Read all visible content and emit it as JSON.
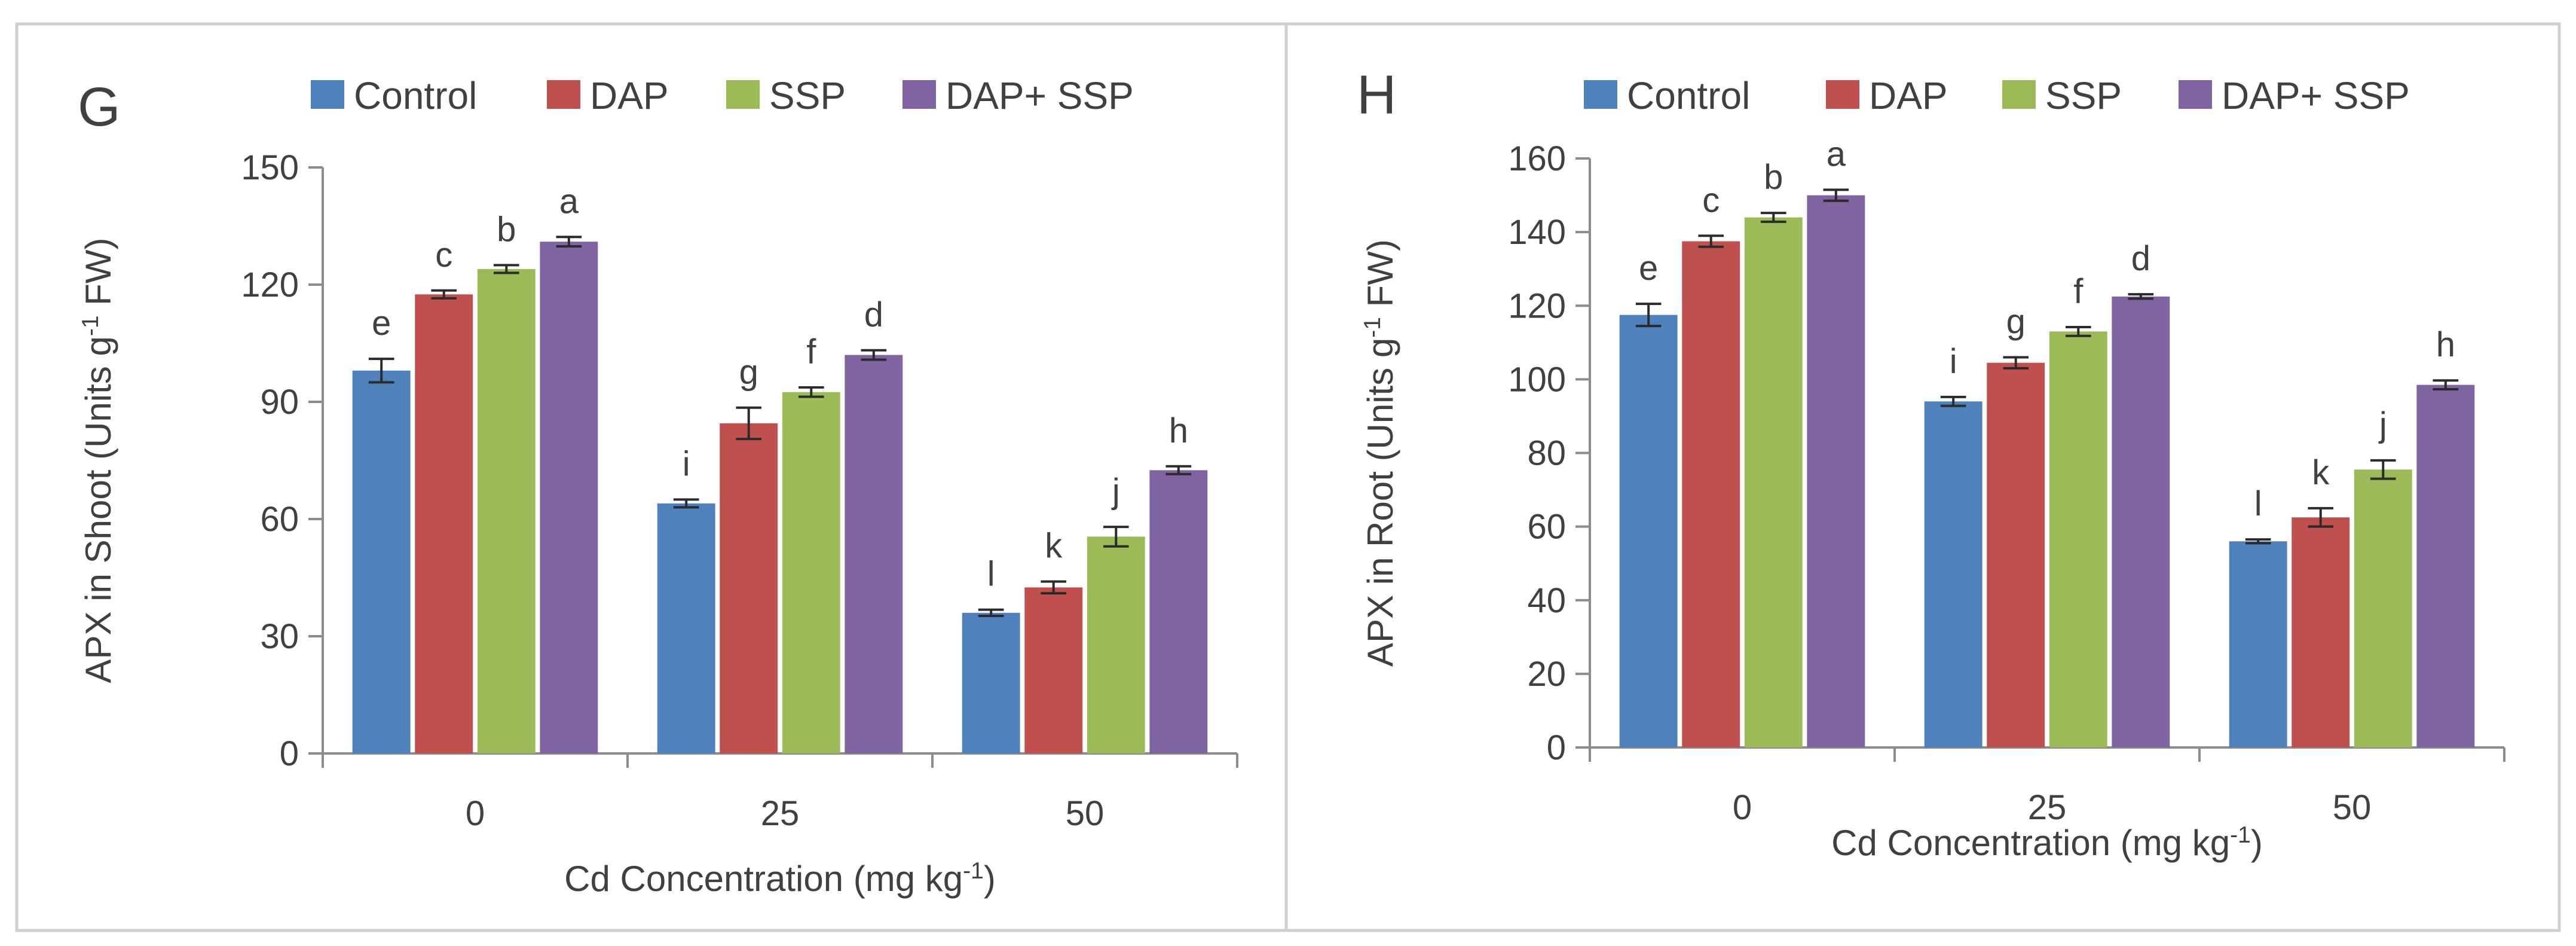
{
  "chart_data": [
    {
      "type": "bar",
      "panel": "G",
      "categories": [
        "0",
        "25",
        "50"
      ],
      "series": [
        {
          "name": "Control",
          "color": "#4f81bd",
          "values": [
            98,
            64,
            36
          ],
          "errors": [
            3,
            1,
            0.8
          ],
          "letters": [
            "e",
            "i",
            "l"
          ]
        },
        {
          "name": "DAP",
          "color": "#c0504d",
          "values": [
            117.5,
            84.5,
            42.5
          ],
          "errors": [
            1,
            4,
            1.5
          ],
          "letters": [
            "c",
            "g",
            "k"
          ]
        },
        {
          "name": "SSP",
          "color": "#9bbb59",
          "values": [
            124,
            92.5,
            55.5
          ],
          "errors": [
            1,
            1.2,
            2.5
          ],
          "letters": [
            "b",
            "f",
            "j"
          ]
        },
        {
          "name": "DAP+ SSP",
          "color": "#8064a2",
          "values": [
            131,
            102,
            72.5
          ],
          "errors": [
            1.2,
            1.2,
            1
          ],
          "letters": [
            "a",
            "d",
            "h"
          ]
        }
      ],
      "xlabel": "Cd Concentration (mg kg-1)",
      "ylabel": "APX in Shoot (Units g-1 FW)",
      "ylim": [
        0,
        150
      ],
      "yticks": [
        "0",
        "30",
        "60",
        "90",
        "120",
        "150"
      ],
      "legend": "top"
    },
    {
      "type": "bar",
      "panel": "H",
      "categories": [
        "0",
        "25",
        "50"
      ],
      "series": [
        {
          "name": "Control",
          "color": "#4f81bd",
          "values": [
            117.5,
            94,
            56
          ],
          "errors": [
            3,
            1.2,
            0.5
          ],
          "letters": [
            "e",
            "i",
            "l"
          ]
        },
        {
          "name": "DAP",
          "color": "#c0504d",
          "values": [
            137.5,
            104.5,
            62.5
          ],
          "errors": [
            1.5,
            1.5,
            2.5
          ],
          "letters": [
            "c",
            "g",
            "k"
          ]
        },
        {
          "name": "SSP",
          "color": "#9bbb59",
          "values": [
            144,
            113,
            75.5
          ],
          "errors": [
            1.2,
            1.2,
            2.5
          ],
          "letters": [
            "b",
            "f",
            "j"
          ]
        },
        {
          "name": "DAP+ SSP",
          "color": "#8064a2",
          "values": [
            150,
            122.5,
            98.5
          ],
          "errors": [
            1.5,
            0.6,
            1.2
          ],
          "letters": [
            "a",
            "d",
            "h"
          ]
        }
      ],
      "xlabel": "Cd Concentration (mg kg-1)",
      "ylabel": "APX in Root (Units g-1 FW)",
      "ylim": [
        0,
        160
      ],
      "yticks": [
        "0",
        "20",
        "40",
        "60",
        "80",
        "100",
        "120",
        "140",
        "160"
      ],
      "legend": "top"
    }
  ]
}
